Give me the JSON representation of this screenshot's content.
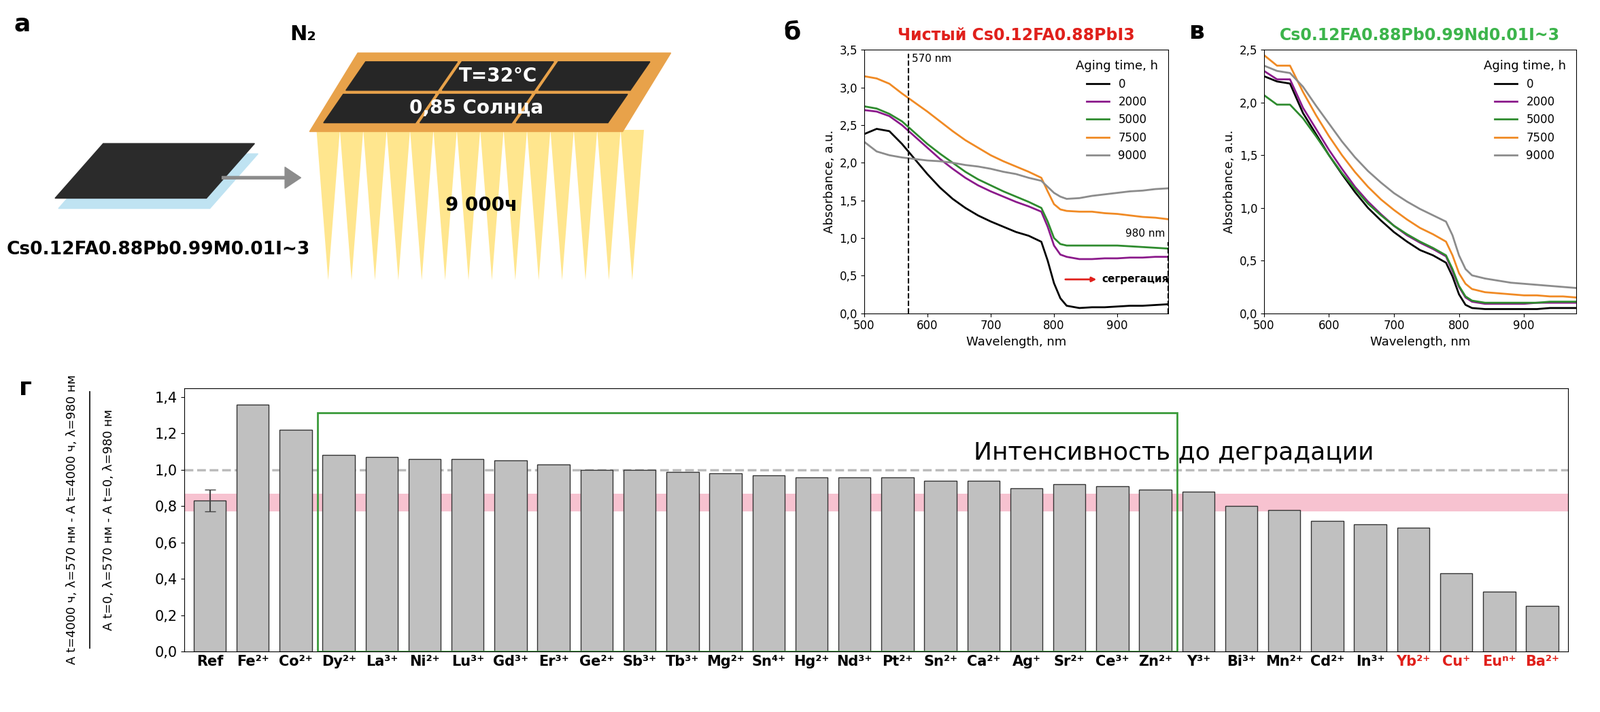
{
  "diagram": {
    "panel_label": "а",
    "formula": "Cs0.12FA0.88Pb0.99M0.01I~3",
    "atmosphere": "N₂",
    "temperature": "T=32°C",
    "illumination": "0,85 Солнца",
    "duration": "9 000ч"
  },
  "chart_data": [
    {
      "panel_label": "б",
      "type": "line",
      "title": "Чистый Cs0.12FA0.88PbI3",
      "xlabel": "Wavelength, nm",
      "ylabel": "Absorbance, a.u.",
      "x": [
        500,
        520,
        540,
        560,
        580,
        600,
        620,
        640,
        660,
        680,
        700,
        720,
        740,
        760,
        780,
        790,
        800,
        810,
        820,
        840,
        860,
        880,
        900,
        920,
        940,
        960,
        980
      ],
      "series": [
        {
          "name": "0",
          "color": "#000000",
          "values": [
            2.38,
            2.45,
            2.42,
            2.25,
            2.05,
            1.85,
            1.67,
            1.52,
            1.4,
            1.3,
            1.22,
            1.15,
            1.08,
            1.03,
            0.95,
            0.7,
            0.4,
            0.2,
            0.1,
            0.07,
            0.08,
            0.08,
            0.09,
            0.1,
            0.1,
            0.11,
            0.12
          ]
        },
        {
          "name": "2000",
          "color": "#8b1a8b",
          "values": [
            2.7,
            2.68,
            2.62,
            2.5,
            2.35,
            2.2,
            2.05,
            1.92,
            1.8,
            1.7,
            1.62,
            1.55,
            1.48,
            1.42,
            1.35,
            1.15,
            0.9,
            0.78,
            0.75,
            0.72,
            0.72,
            0.73,
            0.73,
            0.74,
            0.74,
            0.75,
            0.75
          ]
        },
        {
          "name": "5000",
          "color": "#2e8b2e",
          "values": [
            2.75,
            2.72,
            2.65,
            2.55,
            2.4,
            2.25,
            2.12,
            2.0,
            1.88,
            1.78,
            1.7,
            1.62,
            1.55,
            1.48,
            1.4,
            1.22,
            1.0,
            0.92,
            0.9,
            0.9,
            0.9,
            0.9,
            0.9,
            0.89,
            0.88,
            0.87,
            0.86
          ]
        },
        {
          "name": "7500",
          "color": "#f08a24",
          "values": [
            3.15,
            3.12,
            3.05,
            2.92,
            2.8,
            2.68,
            2.55,
            2.42,
            2.3,
            2.2,
            2.1,
            2.02,
            1.95,
            1.88,
            1.8,
            1.62,
            1.45,
            1.38,
            1.36,
            1.35,
            1.35,
            1.33,
            1.32,
            1.3,
            1.28,
            1.27,
            1.25
          ]
        },
        {
          "name": "9000",
          "color": "#8c8c8c",
          "values": [
            2.28,
            2.15,
            2.1,
            2.07,
            2.05,
            2.03,
            2.02,
            2.0,
            1.97,
            1.95,
            1.92,
            1.88,
            1.85,
            1.8,
            1.76,
            1.68,
            1.6,
            1.55,
            1.52,
            1.53,
            1.56,
            1.58,
            1.6,
            1.62,
            1.63,
            1.65,
            1.66
          ]
        }
      ],
      "xlim": [
        500,
        980
      ],
      "xticks": [
        500,
        600,
        700,
        800,
        900
      ],
      "ylim": [
        0,
        3.5
      ],
      "yticks": [
        {
          "value": 0,
          "label": "0,0"
        },
        {
          "value": 0.5,
          "label": "0,5"
        },
        {
          "value": 1.0,
          "label": "1,0"
        },
        {
          "value": 1.5,
          "label": "1,5"
        },
        {
          "value": 2.0,
          "label": "2,0"
        },
        {
          "value": 2.5,
          "label": "2,5"
        },
        {
          "value": 3.0,
          "label": "3,0"
        },
        {
          "value": 3.5,
          "label": "3,5"
        }
      ],
      "legend": "upper right",
      "legend_title": "Aging time, h",
      "annotations": [
        {
          "kind": "vline",
          "text": "570 nm",
          "x": 570,
          "y": 3.45
        },
        {
          "kind": "vline",
          "text": "980 nm",
          "x": 980,
          "y": 0.95
        },
        {
          "kind": "arrow",
          "text": "сегрегация",
          "x": 815,
          "x_end": 870,
          "y": 0.45
        }
      ]
    },
    {
      "panel_label": "в",
      "type": "line",
      "title": "Cs0.12FA0.88Pb0.99Nd0.01I~3",
      "xlabel": "Wavelength, nm",
      "ylabel": "Absorbance, a.u.",
      "x": [
        500,
        520,
        540,
        560,
        580,
        600,
        620,
        640,
        660,
        680,
        700,
        720,
        740,
        760,
        780,
        790,
        800,
        810,
        820,
        840,
        860,
        880,
        900,
        920,
        940,
        960,
        980
      ],
      "series": [
        {
          "name": "0",
          "color": "#000000",
          "values": [
            2.25,
            2.2,
            2.18,
            1.9,
            1.7,
            1.5,
            1.32,
            1.15,
            1.0,
            0.88,
            0.77,
            0.68,
            0.6,
            0.55,
            0.48,
            0.35,
            0.18,
            0.08,
            0.05,
            0.04,
            0.04,
            0.04,
            0.04,
            0.04,
            0.05,
            0.05,
            0.05
          ]
        },
        {
          "name": "2000",
          "color": "#8b1a8b",
          "values": [
            2.3,
            2.22,
            2.22,
            1.95,
            1.75,
            1.55,
            1.37,
            1.2,
            1.06,
            0.94,
            0.83,
            0.74,
            0.67,
            0.61,
            0.54,
            0.4,
            0.25,
            0.15,
            0.11,
            0.09,
            0.09,
            0.09,
            0.09,
            0.1,
            0.1,
            0.1,
            0.1
          ]
        },
        {
          "name": "5000",
          "color": "#2e8b2e",
          "values": [
            2.07,
            1.98,
            1.98,
            1.85,
            1.68,
            1.5,
            1.33,
            1.18,
            1.04,
            0.93,
            0.83,
            0.75,
            0.68,
            0.62,
            0.55,
            0.42,
            0.26,
            0.16,
            0.12,
            0.1,
            0.1,
            0.1,
            0.1,
            0.1,
            0.11,
            0.11,
            0.11
          ]
        },
        {
          "name": "7500",
          "color": "#f08a24",
          "values": [
            2.45,
            2.35,
            2.35,
            2.1,
            1.88,
            1.68,
            1.5,
            1.34,
            1.2,
            1.08,
            0.98,
            0.89,
            0.81,
            0.75,
            0.68,
            0.55,
            0.38,
            0.28,
            0.23,
            0.2,
            0.19,
            0.18,
            0.17,
            0.17,
            0.16,
            0.16,
            0.15
          ]
        },
        {
          "name": "9000",
          "color": "#8c8c8c",
          "values": [
            2.35,
            2.3,
            2.28,
            2.15,
            1.97,
            1.8,
            1.63,
            1.48,
            1.35,
            1.24,
            1.14,
            1.06,
            0.99,
            0.93,
            0.87,
            0.74,
            0.55,
            0.42,
            0.36,
            0.33,
            0.31,
            0.29,
            0.28,
            0.27,
            0.26,
            0.25,
            0.24
          ]
        }
      ],
      "xlim": [
        500,
        980
      ],
      "xticks": [
        500,
        600,
        700,
        800,
        900
      ],
      "ylim": [
        0,
        2.5
      ],
      "yticks": [
        {
          "value": 0,
          "label": "0,0"
        },
        {
          "value": 0.5,
          "label": "0,5"
        },
        {
          "value": 1.0,
          "label": "1,0"
        },
        {
          "value": 1.5,
          "label": "1,5"
        },
        {
          "value": 2.0,
          "label": "2,0"
        },
        {
          "value": 2.5,
          "label": "2,5"
        }
      ],
      "legend": "upper right",
      "legend_title": "Aging time, h"
    },
    {
      "panel_label": "г",
      "type": "bar",
      "categories": [
        "Ref",
        "Fe²⁺",
        "Co²⁺",
        "Dy²⁺",
        "La³⁺",
        "Ni²⁺",
        "Lu³⁺",
        "Gd³⁺",
        "Er³⁺",
        "Ge²⁺",
        "Sb³⁺",
        "Tb³⁺",
        "Mg²⁺",
        "Sn⁴⁺",
        "Hg²⁺",
        "Nd³⁺",
        "Pt²⁺",
        "Sn²⁺",
        "Ca²⁺",
        "Ag⁺",
        "Sr²⁺",
        "Ce³⁺",
        "Zn²⁺",
        "Y³⁺",
        "Bi³⁺",
        "Mn²⁺",
        "Cd²⁺",
        "In³⁺",
        "Yb²⁺",
        "Cu⁺",
        "Euⁿ⁺",
        "Ba²⁺"
      ],
      "values": [
        0.83,
        1.36,
        1.22,
        1.08,
        1.07,
        1.06,
        1.06,
        1.05,
        1.03,
        1.0,
        1.0,
        0.99,
        0.98,
        0.97,
        0.96,
        0.96,
        0.96,
        0.94,
        0.94,
        0.9,
        0.92,
        0.91,
        0.89,
        0.88,
        0.8,
        0.78,
        0.72,
        0.7,
        0.68,
        0.43,
        0.33,
        0.25
      ],
      "error_bars": [
        {
          "category": "Ref",
          "value": 0.06
        }
      ],
      "color": "#c0c0c0",
      "ylim": [
        0,
        1.45
      ],
      "yticks": [
        {
          "value": 0,
          "label": "0,0"
        },
        {
          "value": 0.2,
          "label": "0,2"
        },
        {
          "value": 0.4,
          "label": "0,4"
        },
        {
          "value": 0.6,
          "label": "0,6"
        },
        {
          "value": 0.8,
          "label": "0,8"
        },
        {
          "value": 1.0,
          "label": "1,0"
        },
        {
          "value": 1.2,
          "label": "1,2"
        },
        {
          "value": 1.4,
          "label": "1,4"
        }
      ],
      "ylabel_numerator": "A t=4000 ч, λ=570 нм - A t=4000 ч, λ=980 нм",
      "ylabel_denominator": "A t=0, λ=570 нм - A t=0, λ=980 нм",
      "reference_line": {
        "value": 1.0,
        "label": "Интенсивность до деградации"
      },
      "band": [
        0.77,
        0.87
      ],
      "box": [
        "Dy²⁺",
        "Zn²⁺"
      ],
      "highlighted": [
        "Yb²⁺",
        "Cu⁺",
        "Euⁿ⁺",
        "Ba²⁺"
      ]
    }
  ]
}
